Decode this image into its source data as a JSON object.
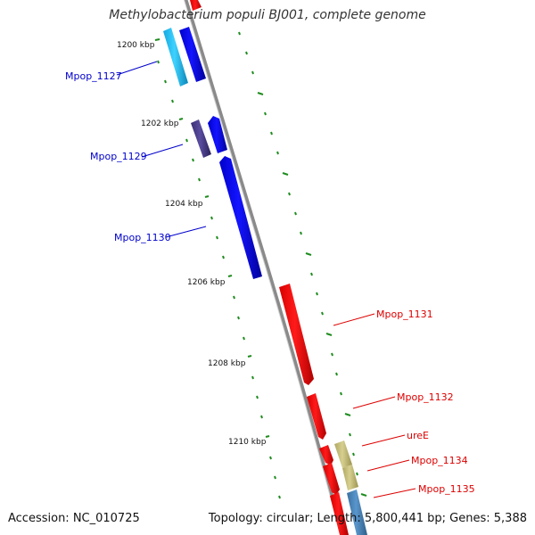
{
  "title": "Methylobacterium populi BJ001, complete genome",
  "accession": "Accession: NC_010725",
  "summary": "Topology: circular; Length: 5,800,441 bp; Genes: 5,388",
  "colors": {
    "backbone": "#888888",
    "tick": "#1e8c1e",
    "label_forward": "#0000cc",
    "label_reverse": "#dd0000",
    "gene_blue": "#0000ff",
    "gene_cyan": "#22c8f0",
    "gene_purple": "#4a3d8c",
    "gene_red": "#ff0000",
    "gene_khaki": "#c8c080",
    "gene_steel": "#4682b4"
  },
  "scale_labels": [
    "1200 kbp",
    "1202 kbp",
    "1204 kbp",
    "1206 kbp",
    "1208 kbp",
    "1210 kbp"
  ],
  "gene_labels": {
    "mpop_1127": "Mpop_1127",
    "mpop_1129": "Mpop_1129",
    "mpop_1130": "Mpop_1130",
    "mpop_1131": "Mpop_1131",
    "mpop_1132": "Mpop_1132",
    "uree": "ureE",
    "mpop_1134": "Mpop_1134",
    "mpop_1135": "Mpop_1135"
  }
}
